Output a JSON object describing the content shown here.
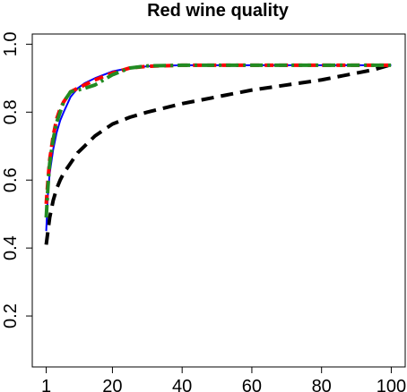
{
  "chart_data": {
    "type": "line",
    "title": "Red wine quality",
    "xlabel": "",
    "ylabel": "",
    "xlim": [
      -3,
      104
    ],
    "ylim": [
      0.05,
      1.03
    ],
    "x_ticks": [
      1,
      20,
      40,
      60,
      80,
      100
    ],
    "y_ticks": [
      0.2,
      0.4,
      0.6,
      0.8,
      1.0
    ],
    "x_tick_labels": [
      "1",
      "20",
      "40",
      "60",
      "80",
      "100"
    ],
    "y_tick_labels": [
      "0.2",
      "0.4",
      "0.6",
      "0.8",
      "1.0"
    ],
    "grid": false,
    "legend": "none",
    "series": [
      {
        "color": "#000000",
        "style": "long-dash",
        "x": [
          1,
          2,
          3,
          4,
          5,
          6,
          8,
          10,
          12,
          15,
          20,
          25,
          30,
          40,
          50,
          60,
          70,
          80,
          90,
          95,
          100
        ],
        "y": [
          0.41,
          0.49,
          0.54,
          0.575,
          0.6,
          0.62,
          0.65,
          0.68,
          0.7,
          0.73,
          0.765,
          0.785,
          0.8,
          0.825,
          0.845,
          0.865,
          0.88,
          0.895,
          0.915,
          0.925,
          0.94
        ]
      },
      {
        "color": "#0000ff",
        "style": "solid",
        "x": [
          1,
          1.5,
          2,
          3,
          4,
          5,
          6,
          8,
          10,
          12,
          15,
          20,
          25,
          30,
          40,
          50,
          60,
          70,
          80,
          90,
          100
        ],
        "y": [
          0.45,
          0.56,
          0.62,
          0.69,
          0.74,
          0.775,
          0.8,
          0.845,
          0.87,
          0.885,
          0.9,
          0.92,
          0.93,
          0.935,
          0.938,
          0.938,
          0.938,
          0.938,
          0.938,
          0.938,
          0.938
        ]
      },
      {
        "color": "#ff0000",
        "style": "dashed",
        "x": [
          1,
          1.5,
          2,
          3,
          4,
          5,
          6,
          8,
          10,
          12,
          15,
          20,
          25,
          30,
          40,
          50,
          60,
          70,
          80,
          90,
          100
        ],
        "y": [
          0.53,
          0.6,
          0.66,
          0.73,
          0.78,
          0.81,
          0.83,
          0.86,
          0.87,
          0.88,
          0.895,
          0.915,
          0.93,
          0.935,
          0.938,
          0.938,
          0.938,
          0.938,
          0.938,
          0.938,
          0.938
        ]
      },
      {
        "color": "#228b22",
        "style": "dash-dot",
        "x": [
          1,
          1.5,
          2,
          3,
          4,
          5,
          6,
          8,
          10,
          12,
          15,
          20,
          25,
          30,
          40,
          50,
          60,
          70,
          80,
          90,
          100
        ],
        "y": [
          0.49,
          0.58,
          0.65,
          0.72,
          0.77,
          0.8,
          0.83,
          0.86,
          0.865,
          0.87,
          0.88,
          0.91,
          0.93,
          0.936,
          0.938,
          0.938,
          0.938,
          0.938,
          0.938,
          0.938,
          0.938
        ]
      }
    ]
  }
}
